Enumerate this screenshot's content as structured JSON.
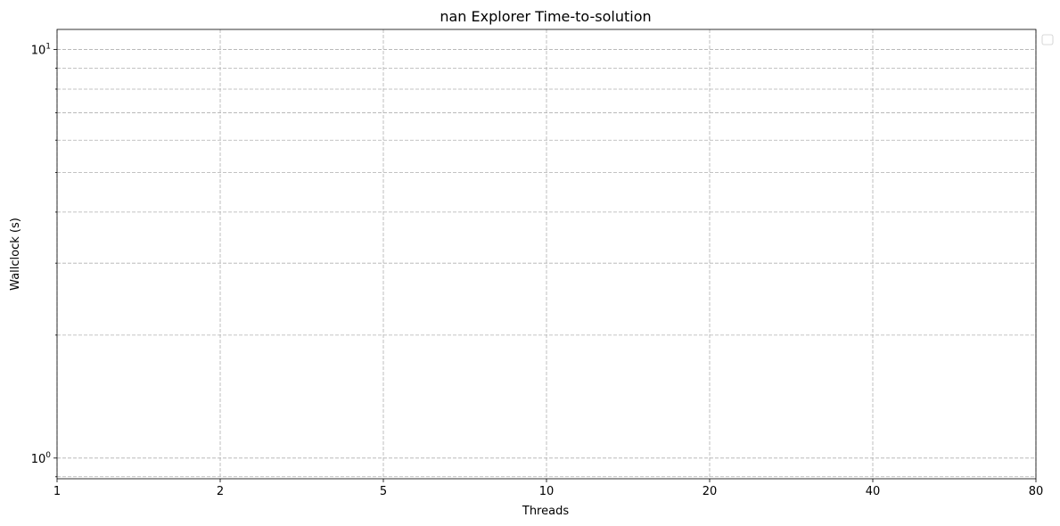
{
  "chart_data": {
    "type": "line",
    "title": "nan Explorer Time-to-solution",
    "xlabel": "Threads",
    "ylabel": "Wallclock (s)",
    "x_scale": "categorical",
    "y_scale": "log",
    "x_ticks": [
      "1",
      "2",
      "5",
      "10",
      "20",
      "40",
      "80"
    ],
    "y_ticks": [
      {
        "value": 1,
        "base": "10",
        "exp": "0"
      },
      {
        "value": 10,
        "base": "10",
        "exp": "1"
      }
    ],
    "ylim": [
      0.89,
      11.2
    ],
    "grid": true,
    "legend": "upper-right",
    "series": []
  }
}
